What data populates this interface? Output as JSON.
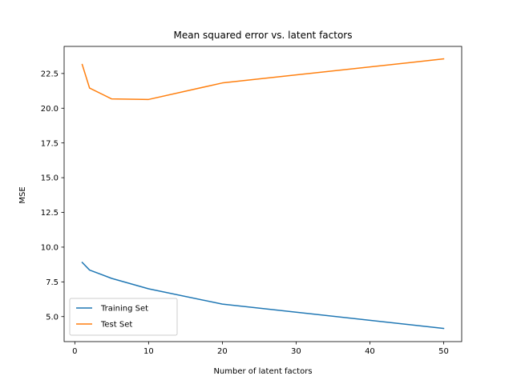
{
  "chart_data": {
    "type": "line",
    "title": "Mean squared error vs. latent factors",
    "xlabel": "Number of latent factors",
    "ylabel": "MSE",
    "xlim": [
      -1.45,
      52.45
    ],
    "ylim": [
      3.2,
      24.45
    ],
    "xticks": [
      0,
      10,
      20,
      30,
      40,
      50
    ],
    "yticks": [
      5.0,
      7.5,
      10.0,
      12.5,
      15.0,
      17.5,
      20.0,
      22.5
    ],
    "ytick_labels": [
      "5.0",
      "7.5",
      "10.0",
      "12.5",
      "15.0",
      "17.5",
      "20.0",
      "22.5"
    ],
    "grid": false,
    "legend_position": "lower left",
    "series": [
      {
        "name": "Training Set",
        "color": "#1f77b4",
        "x": [
          1,
          2,
          5,
          10,
          20,
          50
        ],
        "y": [
          8.9,
          8.35,
          7.75,
          7.0,
          5.9,
          4.15
        ]
      },
      {
        "name": "Test Set",
        "color": "#ff7f0e",
        "x": [
          1,
          2,
          5,
          10,
          20,
          50
        ],
        "y": [
          23.15,
          21.45,
          20.67,
          20.63,
          21.82,
          23.55
        ]
      }
    ]
  }
}
